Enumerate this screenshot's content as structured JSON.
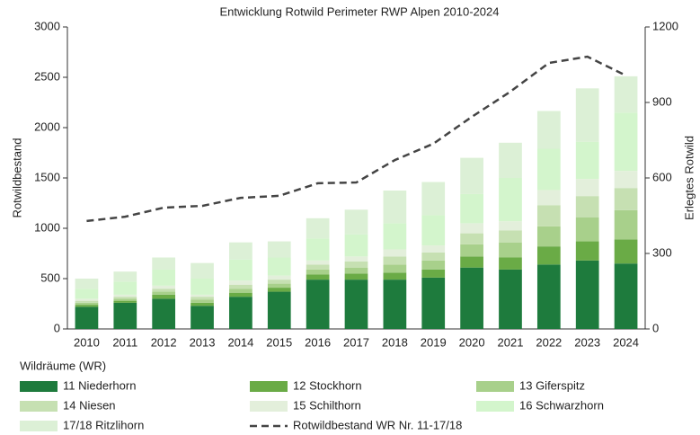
{
  "chart_data": {
    "type": "bar",
    "stacked": true,
    "title": "Entwicklung Rotwild Perimeter RWP Alpen 2010-2024",
    "y_label": "Rotwildbestand",
    "y2_label": "Erlegtes Rotwild",
    "legend_title": "Wildräume (WR)",
    "categories": [
      "2010",
      "2011",
      "2012",
      "2013",
      "2014",
      "2015",
      "2016",
      "2017",
      "2018",
      "2019",
      "2020",
      "2021",
      "2022",
      "2023",
      "2024"
    ],
    "ylim": [
      0,
      3000
    ],
    "yticks": [
      0,
      500,
      1000,
      1500,
      2000,
      2500,
      3000
    ],
    "y2lim": [
      0,
      1200
    ],
    "y2ticks": [
      0,
      300,
      600,
      900,
      1200
    ],
    "series": [
      {
        "name": "11 Niederhorn",
        "color": "#1e7b3d",
        "values": [
          220,
          260,
          300,
          230,
          320,
          370,
          490,
          490,
          490,
          510,
          610,
          590,
          640,
          680,
          650
        ]
      },
      {
        "name": "12 Stockhorn",
        "color": "#6aab46",
        "values": [
          20,
          20,
          40,
          30,
          40,
          40,
          50,
          60,
          70,
          80,
          110,
          120,
          180,
          190,
          240
        ]
      },
      {
        "name": "13 Giferspitz",
        "color": "#a8d08b",
        "values": [
          20,
          20,
          30,
          30,
          40,
          40,
          50,
          60,
          80,
          90,
          120,
          150,
          200,
          240,
          290
        ]
      },
      {
        "name": "14 Niesen",
        "color": "#c6e0b2",
        "values": [
          20,
          20,
          30,
          30,
          40,
          40,
          50,
          60,
          80,
          80,
          110,
          120,
          210,
          210,
          220
        ]
      },
      {
        "name": "15 Schilthorn",
        "color": "#e3efdb",
        "values": [
          20,
          20,
          30,
          20,
          40,
          40,
          40,
          50,
          70,
          70,
          100,
          90,
          150,
          170,
          170
        ]
      },
      {
        "name": "16 Schwarzhorn",
        "color": "#d3f5cc",
        "values": [
          100,
          130,
          160,
          160,
          210,
          180,
          220,
          220,
          260,
          300,
          290,
          430,
          410,
          370,
          580
        ]
      },
      {
        "name": "17/18 Ritzlihorn",
        "color": "#dcf0d6",
        "values": [
          100,
          100,
          120,
          155,
          170,
          160,
          200,
          245,
          325,
          330,
          360,
          350,
          375,
          530,
          360
        ]
      },
      {
        "name": "Rotwildbestand WR Nr. 11-17/18",
        "type": "line",
        "axis": "y2",
        "color": "#444444",
        "dashed": true,
        "values": [
          429,
          446,
          482,
          489,
          521,
          529,
          579,
          582,
          671,
          736,
          843,
          943,
          1057,
          1082,
          1007
        ]
      }
    ]
  }
}
